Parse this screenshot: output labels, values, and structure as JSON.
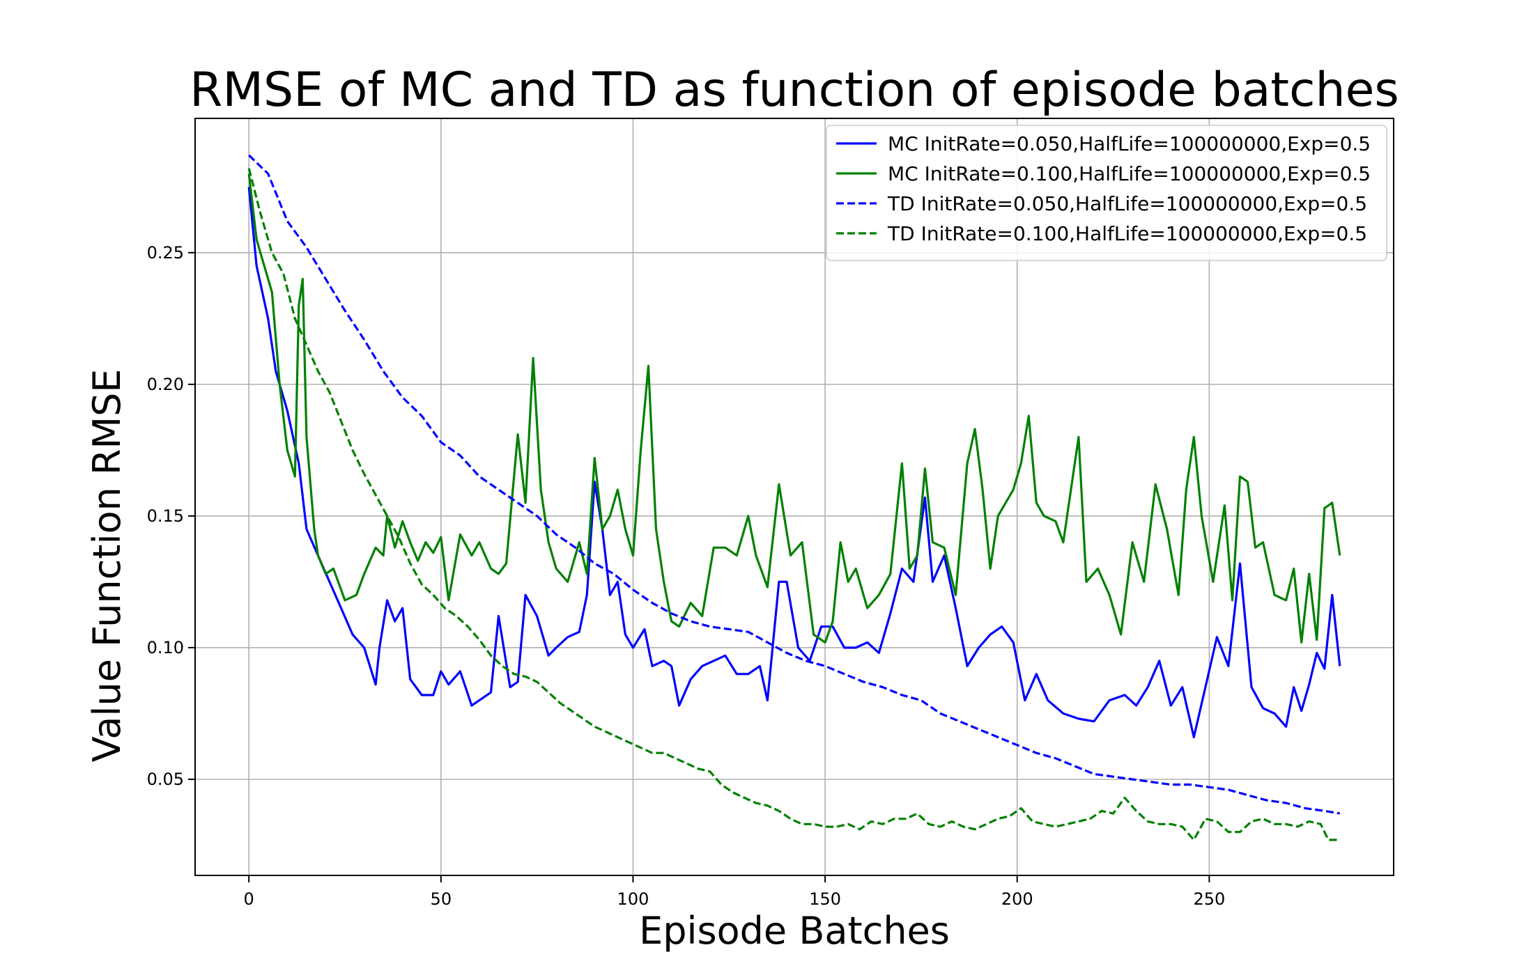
{
  "chart_data": {
    "type": "line",
    "title": "RMSE of MC and TD as function of episode batches",
    "xlabel": "Episode Batches",
    "ylabel": "Value Function RMSE",
    "xlim": [
      -14,
      298
    ],
    "ylim": [
      0.0135,
      0.301
    ],
    "xticks": [
      0,
      50,
      100,
      150,
      200,
      250
    ],
    "xtick_labels": [
      "0",
      "50",
      "100",
      "150",
      "200",
      "250"
    ],
    "yticks": [
      0.05,
      0.1,
      0.15,
      0.2,
      0.25
    ],
    "ytick_labels": [
      "0.05",
      "0.10",
      "0.15",
      "0.20",
      "0.25"
    ],
    "grid": true,
    "legend_position": "top-right",
    "series": [
      {
        "name": "MC InitRate=0.050,HalfLife=100000000,Exp=0.5",
        "color": "#0000ff",
        "style": "solid",
        "x": [
          0,
          2,
          5,
          7,
          10,
          13,
          15,
          18,
          21,
          24,
          27,
          30,
          33,
          34,
          36,
          38,
          40,
          42,
          45,
          48,
          50,
          52,
          55,
          58,
          60,
          63,
          65,
          68,
          70,
          72,
          75,
          78,
          80,
          83,
          86,
          88,
          90,
          92,
          94,
          96,
          98,
          100,
          103,
          105,
          108,
          110,
          112,
          115,
          118,
          121,
          124,
          127,
          130,
          133,
          135,
          138,
          140,
          143,
          146,
          149,
          152,
          155,
          158,
          161,
          164,
          167,
          170,
          173,
          176,
          178,
          181,
          184,
          187,
          190,
          193,
          196,
          199,
          202,
          205,
          208,
          212,
          216,
          220,
          224,
          228,
          231,
          234,
          237,
          240,
          243,
          246,
          249,
          252,
          255,
          258,
          261,
          264,
          267,
          270,
          272,
          274,
          276,
          278,
          280,
          282,
          284
        ],
        "y": [
          0.275,
          0.245,
          0.225,
          0.205,
          0.19,
          0.17,
          0.145,
          0.135,
          0.125,
          0.115,
          0.105,
          0.1,
          0.086,
          0.1,
          0.118,
          0.11,
          0.115,
          0.088,
          0.082,
          0.082,
          0.091,
          0.086,
          0.091,
          0.078,
          0.08,
          0.083,
          0.112,
          0.085,
          0.087,
          0.12,
          0.112,
          0.097,
          0.1,
          0.104,
          0.106,
          0.12,
          0.163,
          0.145,
          0.12,
          0.125,
          0.105,
          0.1,
          0.107,
          0.093,
          0.095,
          0.093,
          0.078,
          0.088,
          0.093,
          0.095,
          0.097,
          0.09,
          0.09,
          0.093,
          0.08,
          0.125,
          0.125,
          0.1,
          0.095,
          0.108,
          0.108,
          0.1,
          0.1,
          0.102,
          0.098,
          0.113,
          0.13,
          0.125,
          0.157,
          0.125,
          0.135,
          0.115,
          0.093,
          0.1,
          0.105,
          0.108,
          0.102,
          0.08,
          0.09,
          0.08,
          0.075,
          0.073,
          0.072,
          0.08,
          0.082,
          0.078,
          0.085,
          0.095,
          0.078,
          0.085,
          0.066,
          0.085,
          0.104,
          0.093,
          0.132,
          0.085,
          0.077,
          0.075,
          0.07,
          0.085,
          0.076,
          0.086,
          0.098,
          0.092,
          0.12,
          0.093
        ]
      },
      {
        "name": "MC InitRate=0.100,HalfLife=100000000,Exp=0.5",
        "color": "#008000",
        "style": "solid",
        "x": [
          0,
          2,
          4,
          6,
          8,
          10,
          12,
          13,
          14,
          15,
          17,
          18,
          20,
          22,
          25,
          28,
          30,
          33,
          35,
          36,
          38,
          40,
          42,
          44,
          46,
          48,
          50,
          52,
          55,
          58,
          60,
          63,
          65,
          67,
          70,
          72,
          74,
          76,
          78,
          80,
          83,
          86,
          88,
          90,
          92,
          94,
          96,
          98,
          100,
          102,
          104,
          106,
          108,
          110,
          112,
          115,
          118,
          121,
          124,
          127,
          130,
          132,
          135,
          138,
          141,
          144,
          147,
          150,
          152,
          154,
          156,
          158,
          161,
          164,
          167,
          170,
          172,
          174,
          176,
          178,
          181,
          184,
          187,
          189,
          191,
          193,
          195,
          197,
          199,
          201,
          203,
          205,
          207,
          210,
          212,
          214,
          216,
          218,
          221,
          224,
          227,
          230,
          233,
          236,
          239,
          242,
          244,
          246,
          248,
          251,
          254,
          256,
          258,
          260,
          262,
          264,
          267,
          270,
          272,
          274,
          276,
          278,
          280,
          282,
          284
        ],
        "y": [
          0.28,
          0.255,
          0.245,
          0.235,
          0.2,
          0.175,
          0.165,
          0.23,
          0.24,
          0.18,
          0.145,
          0.135,
          0.128,
          0.13,
          0.118,
          0.12,
          0.128,
          0.138,
          0.135,
          0.15,
          0.138,
          0.148,
          0.14,
          0.133,
          0.14,
          0.136,
          0.142,
          0.118,
          0.143,
          0.135,
          0.14,
          0.13,
          0.128,
          0.132,
          0.181,
          0.155,
          0.21,
          0.16,
          0.14,
          0.13,
          0.125,
          0.14,
          0.128,
          0.172,
          0.145,
          0.15,
          0.16,
          0.145,
          0.135,
          0.175,
          0.207,
          0.145,
          0.125,
          0.11,
          0.108,
          0.117,
          0.112,
          0.138,
          0.138,
          0.135,
          0.15,
          0.135,
          0.123,
          0.162,
          0.135,
          0.14,
          0.105,
          0.102,
          0.11,
          0.14,
          0.125,
          0.13,
          0.115,
          0.12,
          0.128,
          0.17,
          0.13,
          0.135,
          0.168,
          0.14,
          0.138,
          0.12,
          0.17,
          0.183,
          0.16,
          0.13,
          0.15,
          0.155,
          0.16,
          0.17,
          0.188,
          0.155,
          0.15,
          0.148,
          0.14,
          0.16,
          0.18,
          0.125,
          0.13,
          0.12,
          0.105,
          0.14,
          0.125,
          0.162,
          0.145,
          0.12,
          0.16,
          0.18,
          0.15,
          0.125,
          0.154,
          0.118,
          0.165,
          0.163,
          0.138,
          0.14,
          0.12,
          0.118,
          0.13,
          0.102,
          0.128,
          0.103,
          0.153,
          0.155,
          0.135
        ]
      },
      {
        "name": "TD InitRate=0.050,HalfLife=100000000,Exp=0.5",
        "color": "#0000ff",
        "style": "dashed",
        "x": [
          0,
          5,
          10,
          15,
          20,
          25,
          30,
          35,
          40,
          45,
          50,
          55,
          60,
          65,
          70,
          75,
          80,
          85,
          90,
          95,
          100,
          105,
          110,
          115,
          120,
          125,
          130,
          135,
          140,
          145,
          150,
          155,
          160,
          165,
          170,
          175,
          180,
          185,
          190,
          195,
          200,
          205,
          210,
          215,
          220,
          225,
          230,
          235,
          240,
          245,
          250,
          255,
          260,
          265,
          270,
          275,
          280,
          284
        ],
        "y": [
          0.287,
          0.28,
          0.262,
          0.252,
          0.24,
          0.228,
          0.217,
          0.205,
          0.195,
          0.188,
          0.178,
          0.173,
          0.165,
          0.16,
          0.155,
          0.15,
          0.143,
          0.138,
          0.132,
          0.128,
          0.122,
          0.117,
          0.113,
          0.11,
          0.108,
          0.107,
          0.106,
          0.102,
          0.098,
          0.095,
          0.093,
          0.09,
          0.087,
          0.085,
          0.082,
          0.08,
          0.075,
          0.072,
          0.069,
          0.066,
          0.063,
          0.06,
          0.058,
          0.055,
          0.052,
          0.051,
          0.05,
          0.049,
          0.048,
          0.048,
          0.047,
          0.046,
          0.044,
          0.042,
          0.041,
          0.039,
          0.038,
          0.037
        ]
      },
      {
        "name": "TD InitRate=0.100,HalfLife=100000000,Exp=0.5",
        "color": "#008000",
        "style": "dashed",
        "x": [
          0,
          3,
          6,
          9,
          12,
          15,
          18,
          21,
          24,
          27,
          30,
          33,
          36,
          39,
          42,
          45,
          48,
          51,
          54,
          57,
          60,
          63,
          66,
          69,
          72,
          75,
          78,
          81,
          84,
          87,
          90,
          93,
          96,
          99,
          102,
          105,
          108,
          111,
          114,
          117,
          120,
          123,
          126,
          129,
          132,
          135,
          138,
          141,
          144,
          147,
          150,
          153,
          156,
          159,
          162,
          165,
          168,
          171,
          174,
          177,
          180,
          183,
          186,
          189,
          192,
          195,
          198,
          201,
          204,
          207,
          210,
          213,
          216,
          219,
          222,
          225,
          228,
          231,
          234,
          237,
          240,
          243,
          246,
          249,
          252,
          255,
          258,
          261,
          264,
          267,
          270,
          273,
          276,
          279,
          281,
          284
        ],
        "y": [
          0.282,
          0.265,
          0.25,
          0.242,
          0.225,
          0.215,
          0.205,
          0.197,
          0.186,
          0.175,
          0.166,
          0.158,
          0.15,
          0.142,
          0.132,
          0.124,
          0.12,
          0.115,
          0.112,
          0.108,
          0.103,
          0.097,
          0.093,
          0.09,
          0.089,
          0.087,
          0.083,
          0.079,
          0.076,
          0.073,
          0.07,
          0.068,
          0.066,
          0.064,
          0.062,
          0.06,
          0.06,
          0.058,
          0.056,
          0.054,
          0.053,
          0.048,
          0.045,
          0.043,
          0.041,
          0.04,
          0.038,
          0.035,
          0.033,
          0.033,
          0.032,
          0.032,
          0.033,
          0.031,
          0.034,
          0.033,
          0.035,
          0.035,
          0.037,
          0.033,
          0.032,
          0.034,
          0.032,
          0.031,
          0.033,
          0.035,
          0.036,
          0.039,
          0.034,
          0.033,
          0.032,
          0.033,
          0.034,
          0.035,
          0.038,
          0.037,
          0.043,
          0.038,
          0.034,
          0.033,
          0.033,
          0.032,
          0.027,
          0.035,
          0.034,
          0.03,
          0.03,
          0.034,
          0.035,
          0.033,
          0.033,
          0.032,
          0.034,
          0.033,
          0.027,
          0.027
        ]
      }
    ]
  }
}
